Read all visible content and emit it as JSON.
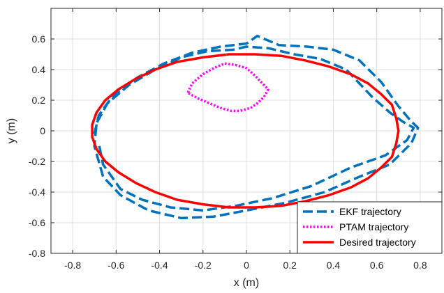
{
  "chart_data": {
    "type": "line",
    "title": "",
    "xlabel": "x (m)",
    "ylabel": "y (m)",
    "xlim": [
      -0.9,
      0.9
    ],
    "ylim": [
      -0.8,
      0.8
    ],
    "xticks": [
      -0.8,
      -0.6,
      -0.4,
      -0.2,
      0,
      0.2,
      0.4,
      0.6,
      0.8
    ],
    "yticks": [
      -0.8,
      -0.6,
      -0.4,
      -0.2,
      0,
      0.2,
      0.4,
      0.6
    ],
    "xtick_labels": [
      "-0.8",
      "-0.6",
      "-0.4",
      "-0.2",
      "0",
      "0.2",
      "0.4",
      "0.6",
      "0.8"
    ],
    "ytick_labels": [
      "-0.8",
      "-0.6",
      "-0.4",
      "-0.2",
      "0",
      "0.2",
      "0.4",
      "0.6"
    ],
    "grid": true,
    "legend_position": "bottom-right",
    "series": [
      {
        "name": "EKF trajectory",
        "color": "#0072BD",
        "style": "dashed",
        "x": [
          -0.7,
          -0.68,
          -0.62,
          -0.5,
          -0.38,
          -0.25,
          -0.12,
          0.0,
          0.05,
          0.15,
          0.28,
          0.4,
          0.52,
          0.62,
          0.7,
          0.76,
          0.79,
          0.76,
          0.66,
          0.52,
          0.36,
          0.18,
          0.0,
          -0.15,
          -0.3,
          -0.45,
          -0.58,
          -0.66,
          -0.7,
          -0.69,
          -0.64,
          -0.54,
          -0.42,
          -0.3,
          -0.18,
          -0.06,
          0.0,
          0.1,
          0.22,
          0.34,
          0.46,
          0.58,
          0.66,
          0.72,
          0.77,
          0.74,
          0.64,
          0.48,
          0.3,
          0.12,
          -0.05,
          -0.2,
          -0.35,
          -0.48,
          -0.58,
          -0.66,
          -0.68
        ],
        "y": [
          -0.02,
          0.1,
          0.22,
          0.35,
          0.44,
          0.51,
          0.55,
          0.57,
          0.62,
          0.56,
          0.55,
          0.53,
          0.46,
          0.32,
          0.16,
          0.06,
          0.02,
          -0.08,
          -0.22,
          -0.3,
          -0.4,
          -0.47,
          -0.52,
          -0.56,
          -0.57,
          -0.52,
          -0.42,
          -0.3,
          -0.1,
          0.05,
          0.18,
          0.3,
          0.4,
          0.48,
          0.52,
          0.53,
          0.55,
          0.54,
          0.5,
          0.47,
          0.4,
          0.22,
          0.12,
          0.06,
          0.02,
          -0.06,
          -0.16,
          -0.24,
          -0.36,
          -0.44,
          -0.49,
          -0.52,
          -0.5,
          -0.45,
          -0.38,
          -0.22,
          -0.08
        ]
      },
      {
        "name": "PTAM trajectory",
        "color": "#FF00FF",
        "style": "dotted",
        "x": [
          -0.27,
          -0.25,
          -0.2,
          -0.15,
          -0.1,
          -0.05,
          0.0,
          0.04,
          0.08,
          0.1,
          0.08,
          0.05,
          0.02,
          -0.03,
          -0.07,
          -0.12,
          -0.17,
          -0.22,
          -0.26,
          -0.27
        ],
        "y": [
          0.25,
          0.31,
          0.37,
          0.41,
          0.44,
          0.43,
          0.41,
          0.36,
          0.3,
          0.27,
          0.22,
          0.18,
          0.15,
          0.13,
          0.13,
          0.15,
          0.18,
          0.21,
          0.24,
          0.25
        ]
      },
      {
        "name": "Desired trajectory",
        "color": "#FF0000",
        "style": "solid",
        "x": [
          0.7,
          0.69,
          0.67,
          0.62,
          0.56,
          0.48,
          0.38,
          0.27,
          0.16,
          0.04,
          -0.08,
          -0.2,
          -0.32,
          -0.42,
          -0.51,
          -0.59,
          -0.65,
          -0.69,
          -0.71,
          -0.71,
          -0.69,
          -0.65,
          -0.59,
          -0.51,
          -0.42,
          -0.32,
          -0.2,
          -0.08,
          0.04,
          0.16,
          0.27,
          0.38,
          0.48,
          0.56,
          0.62,
          0.67,
          0.69,
          0.7
        ],
        "y": [
          0.0,
          0.08,
          0.17,
          0.24,
          0.31,
          0.37,
          0.42,
          0.46,
          0.49,
          0.5,
          0.5,
          0.48,
          0.45,
          0.4,
          0.34,
          0.27,
          0.2,
          0.12,
          0.04,
          -0.04,
          -0.12,
          -0.2,
          -0.27,
          -0.34,
          -0.4,
          -0.45,
          -0.48,
          -0.5,
          -0.5,
          -0.49,
          -0.46,
          -0.42,
          -0.37,
          -0.31,
          -0.24,
          -0.17,
          -0.08,
          0.0
        ]
      }
    ]
  }
}
